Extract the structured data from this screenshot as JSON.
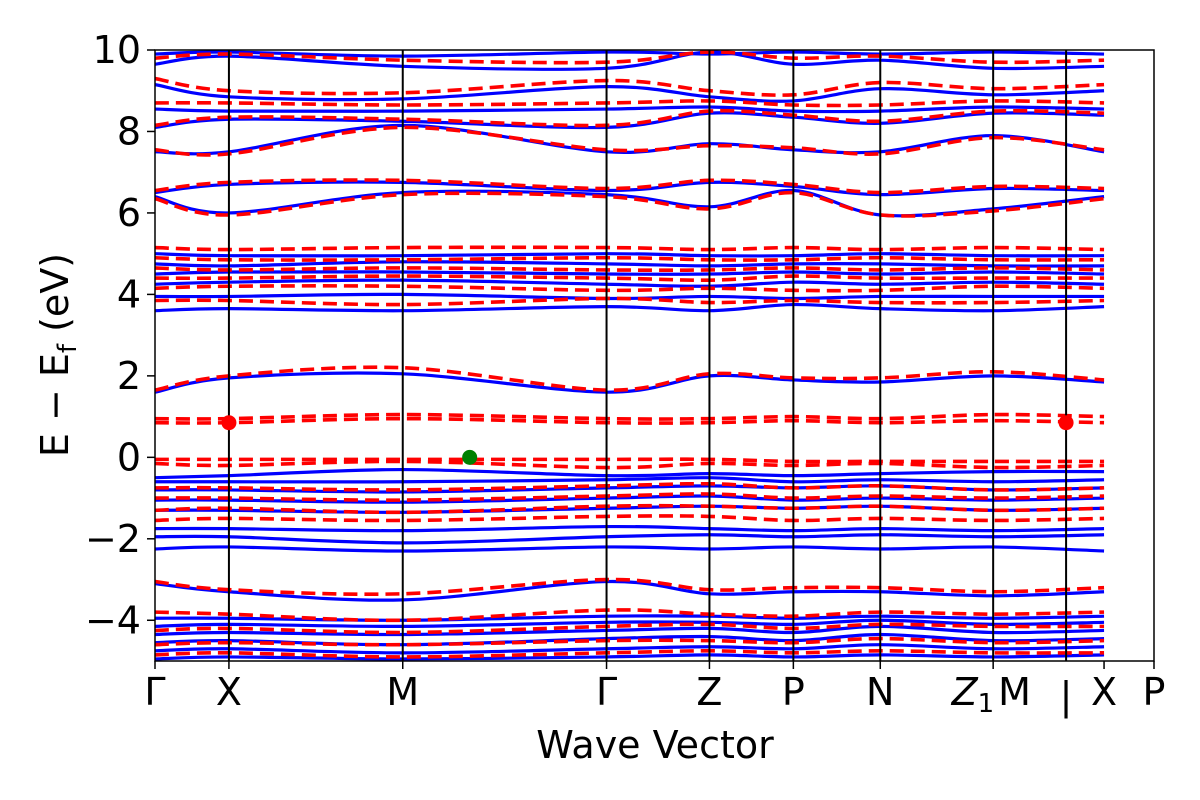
{
  "chart_data": {
    "type": "line",
    "xlabel": "Wave Vector",
    "ylabel_main": "E − E",
    "ylabel_sub": "f",
    "ylabel_unit": " (eV)",
    "ylim": [
      -5,
      10
    ],
    "yticks": [
      10,
      8,
      6,
      4,
      2,
      0,
      -2,
      -4
    ],
    "ytick_labels": [
      "10",
      "8",
      "6",
      "4",
      "2",
      "0",
      "−2",
      "−4"
    ],
    "xlim": [
      0,
      1
    ],
    "kpoints": [
      {
        "label": "Γ",
        "pos": 0.0
      },
      {
        "label": "X",
        "pos": 0.074
      },
      {
        "label": "M",
        "pos": 0.248
      },
      {
        "label": "Γ",
        "pos": 0.452
      },
      {
        "label": "Z",
        "pos": 0.555
      },
      {
        "label": "P",
        "pos": 0.639
      },
      {
        "label": "N",
        "pos": 0.726
      },
      {
        "label": "Z",
        "sub": "1",
        "pos": 0.839
      },
      {
        "label": "M",
        "pos": 0.839,
        "align": "start"
      },
      {
        "label": "|",
        "pos": 0.912
      },
      {
        "label": "X",
        "pos": 0.95
      },
      {
        "label": "P",
        "pos": 1.0
      }
    ],
    "divider_lines": [
      0.074,
      0.248,
      0.452,
      0.555,
      0.639,
      0.726,
      0.839,
      0.912
    ],
    "grid": false,
    "band_colors": {
      "spin_up": "#0000ff",
      "spin_down": "#ff0000",
      "highlight": "#ff0000",
      "marker": "#008000"
    },
    "series": [
      {
        "style": "solid",
        "color": "#0000ff",
        "bands": [
          [
            -4.95,
            -4.9,
            -4.95,
            -4.9,
            -4.85,
            -4.9,
            -4.85,
            -4.9,
            -4.85
          ],
          [
            -4.75,
            -4.7,
            -4.8,
            -4.7,
            -4.65,
            -4.7,
            -4.6,
            -4.7,
            -4.65
          ],
          [
            -4.55,
            -4.5,
            -4.6,
            -4.45,
            -4.4,
            -4.5,
            -4.35,
            -4.5,
            -4.45
          ],
          [
            -4.35,
            -4.3,
            -4.35,
            -4.25,
            -4.2,
            -4.3,
            -4.15,
            -4.3,
            -4.25
          ],
          [
            -4.15,
            -4.1,
            -4.15,
            -4.05,
            -4.05,
            -4.1,
            -4.0,
            -4.1,
            -4.05
          ],
          [
            -3.95,
            -3.95,
            -4.0,
            -3.9,
            -3.9,
            -3.95,
            -3.9,
            -3.95,
            -3.9
          ],
          [
            -3.1,
            -3.3,
            -3.5,
            -3.05,
            -3.35,
            -3.3,
            -3.3,
            -3.4,
            -3.3
          ],
          [
            -2.25,
            -2.2,
            -2.3,
            -2.2,
            -2.25,
            -2.2,
            -2.25,
            -2.2,
            -2.3
          ],
          [
            -1.95,
            -1.95,
            -2.1,
            -1.95,
            -1.9,
            -1.95,
            -1.9,
            -1.95,
            -1.9
          ],
          [
            -1.75,
            -1.75,
            -1.8,
            -1.7,
            -1.75,
            -1.8,
            -1.75,
            -1.8,
            -1.75
          ],
          [
            -1.3,
            -1.3,
            -1.35,
            -1.25,
            -1.2,
            -1.25,
            -1.2,
            -1.3,
            -1.25
          ],
          [
            -1.05,
            -1.05,
            -1.1,
            -1.0,
            -0.95,
            -1.05,
            -1.0,
            -1.05,
            -1.0
          ],
          [
            -0.8,
            -0.8,
            -0.85,
            -0.75,
            -0.7,
            -0.75,
            -0.7,
            -0.8,
            -0.75
          ],
          [
            -0.6,
            -0.6,
            -0.6,
            -0.55,
            -0.5,
            -0.6,
            -0.55,
            -0.6,
            -0.55
          ],
          [
            -0.5,
            -0.45,
            -0.3,
            -0.45,
            -0.4,
            -0.45,
            -0.4,
            -0.35,
            -0.35
          ],
          [
            1.6,
            1.95,
            2.05,
            1.6,
            2.0,
            1.9,
            1.85,
            2.0,
            1.85
          ],
          [
            3.6,
            3.65,
            3.6,
            3.7,
            3.6,
            3.75,
            3.65,
            3.6,
            3.7
          ],
          [
            3.95,
            3.95,
            4.0,
            3.9,
            3.95,
            3.9,
            3.95,
            3.95,
            3.95
          ],
          [
            4.25,
            4.3,
            4.35,
            4.25,
            4.2,
            4.3,
            4.25,
            4.3,
            4.25
          ],
          [
            4.5,
            4.55,
            4.55,
            4.5,
            4.5,
            4.55,
            4.5,
            4.55,
            4.5
          ],
          [
            4.75,
            4.7,
            4.8,
            4.75,
            4.7,
            4.75,
            4.75,
            4.7,
            4.7
          ],
          [
            5.0,
            4.95,
            4.95,
            5.0,
            4.95,
            4.95,
            5.0,
            4.95,
            4.95
          ],
          [
            6.4,
            6.0,
            6.5,
            6.45,
            6.15,
            6.55,
            5.95,
            6.1,
            6.4
          ],
          [
            6.5,
            6.7,
            6.75,
            6.55,
            6.75,
            6.65,
            6.45,
            6.6,
            6.55
          ],
          [
            7.5,
            7.5,
            8.15,
            7.5,
            7.7,
            7.55,
            7.5,
            7.9,
            7.5
          ],
          [
            8.1,
            8.3,
            8.25,
            8.1,
            8.45,
            8.35,
            8.2,
            8.45,
            8.4
          ],
          [
            8.55,
            8.5,
            8.5,
            8.55,
            8.6,
            8.5,
            8.5,
            8.6,
            8.55
          ],
          [
            9.15,
            8.85,
            8.8,
            9.1,
            8.85,
            8.75,
            9.05,
            8.9,
            9.0
          ],
          [
            9.65,
            9.85,
            9.6,
            9.55,
            9.95,
            9.65,
            9.75,
            9.55,
            9.6
          ],
          [
            9.9,
            9.95,
            9.85,
            9.95,
            9.9,
            9.95,
            9.9,
            9.95,
            9.9
          ]
        ]
      },
      {
        "style": "dashed",
        "color": "#ff0000",
        "bands": [
          [
            -4.85,
            -4.8,
            -4.9,
            -4.8,
            -4.75,
            -4.8,
            -4.75,
            -4.8,
            -4.8
          ],
          [
            -4.6,
            -4.55,
            -4.6,
            -4.5,
            -4.5,
            -4.55,
            -4.45,
            -4.55,
            -4.5
          ],
          [
            -4.25,
            -4.2,
            -4.3,
            -4.15,
            -4.1,
            -4.2,
            -4.1,
            -4.15,
            -4.15
          ],
          [
            -3.8,
            -3.85,
            -4.0,
            -3.75,
            -3.85,
            -3.9,
            -3.8,
            -3.85,
            -3.8
          ],
          [
            -3.05,
            -3.25,
            -3.35,
            -3.0,
            -3.25,
            -3.2,
            -3.2,
            -3.3,
            -3.2
          ],
          [
            -1.55,
            -1.5,
            -1.55,
            -1.45,
            -1.45,
            -1.55,
            -1.5,
            -1.55,
            -1.5
          ],
          [
            -1.3,
            -1.25,
            -1.35,
            -1.2,
            -1.2,
            -1.25,
            -1.2,
            -1.3,
            -1.25
          ],
          [
            -1.0,
            -1.0,
            -1.05,
            -0.95,
            -0.9,
            -1.0,
            -0.95,
            -1.0,
            -0.95
          ],
          [
            -0.75,
            -0.75,
            -0.8,
            -0.7,
            -0.65,
            -0.75,
            -0.7,
            -0.8,
            -0.75
          ],
          [
            -0.15,
            -0.2,
            -0.1,
            -0.25,
            -0.15,
            -0.2,
            -0.15,
            -0.25,
            -0.2
          ],
          [
            -0.05,
            -0.05,
            -0.05,
            -0.05,
            -0.05,
            -0.1,
            -0.1,
            -0.1,
            -0.1
          ],
          [
            0.85,
            0.85,
            0.95,
            0.85,
            0.85,
            0.9,
            0.85,
            0.9,
            0.85
          ],
          [
            0.95,
            0.95,
            1.05,
            0.95,
            0.95,
            1.0,
            0.95,
            1.05,
            1.0
          ],
          [
            1.65,
            2.0,
            2.2,
            1.65,
            2.05,
            1.95,
            1.95,
            2.1,
            1.9
          ],
          [
            3.85,
            3.85,
            3.75,
            3.9,
            3.8,
            3.85,
            3.8,
            3.8,
            3.85
          ],
          [
            4.15,
            4.2,
            4.2,
            4.1,
            4.15,
            4.1,
            4.1,
            4.2,
            4.15
          ],
          [
            4.4,
            4.4,
            4.45,
            4.4,
            4.35,
            4.45,
            4.4,
            4.4,
            4.4
          ],
          [
            4.65,
            4.6,
            4.65,
            4.6,
            4.6,
            4.65,
            4.6,
            4.65,
            4.6
          ],
          [
            4.9,
            4.85,
            4.85,
            4.9,
            4.85,
            4.85,
            4.9,
            4.85,
            4.85
          ],
          [
            5.15,
            5.1,
            5.15,
            5.15,
            5.1,
            5.15,
            5.1,
            5.15,
            5.1
          ],
          [
            6.35,
            5.95,
            6.45,
            6.4,
            6.1,
            6.5,
            5.95,
            6.05,
            6.35
          ],
          [
            6.55,
            6.75,
            6.8,
            6.6,
            6.8,
            6.7,
            6.5,
            6.65,
            6.6
          ],
          [
            7.55,
            7.45,
            8.1,
            7.55,
            7.65,
            7.6,
            7.45,
            7.85,
            7.55
          ],
          [
            8.15,
            8.35,
            8.3,
            8.15,
            8.5,
            8.4,
            8.25,
            8.5,
            8.45
          ],
          [
            8.7,
            8.7,
            8.65,
            8.7,
            8.75,
            8.65,
            8.65,
            8.75,
            8.7
          ],
          [
            9.3,
            9.0,
            8.95,
            9.25,
            9.0,
            8.9,
            9.2,
            9.05,
            9.15
          ],
          [
            9.8,
            9.9,
            9.75,
            9.7,
            9.95,
            9.8,
            9.85,
            9.7,
            9.75
          ]
        ]
      }
    ],
    "markers": [
      {
        "x": 0.074,
        "y": 0.85,
        "color": "#ff0000"
      },
      {
        "x": 0.912,
        "y": 0.85,
        "color": "#ff0000"
      },
      {
        "x": 0.315,
        "y": 0.0,
        "color": "#008000"
      }
    ]
  }
}
